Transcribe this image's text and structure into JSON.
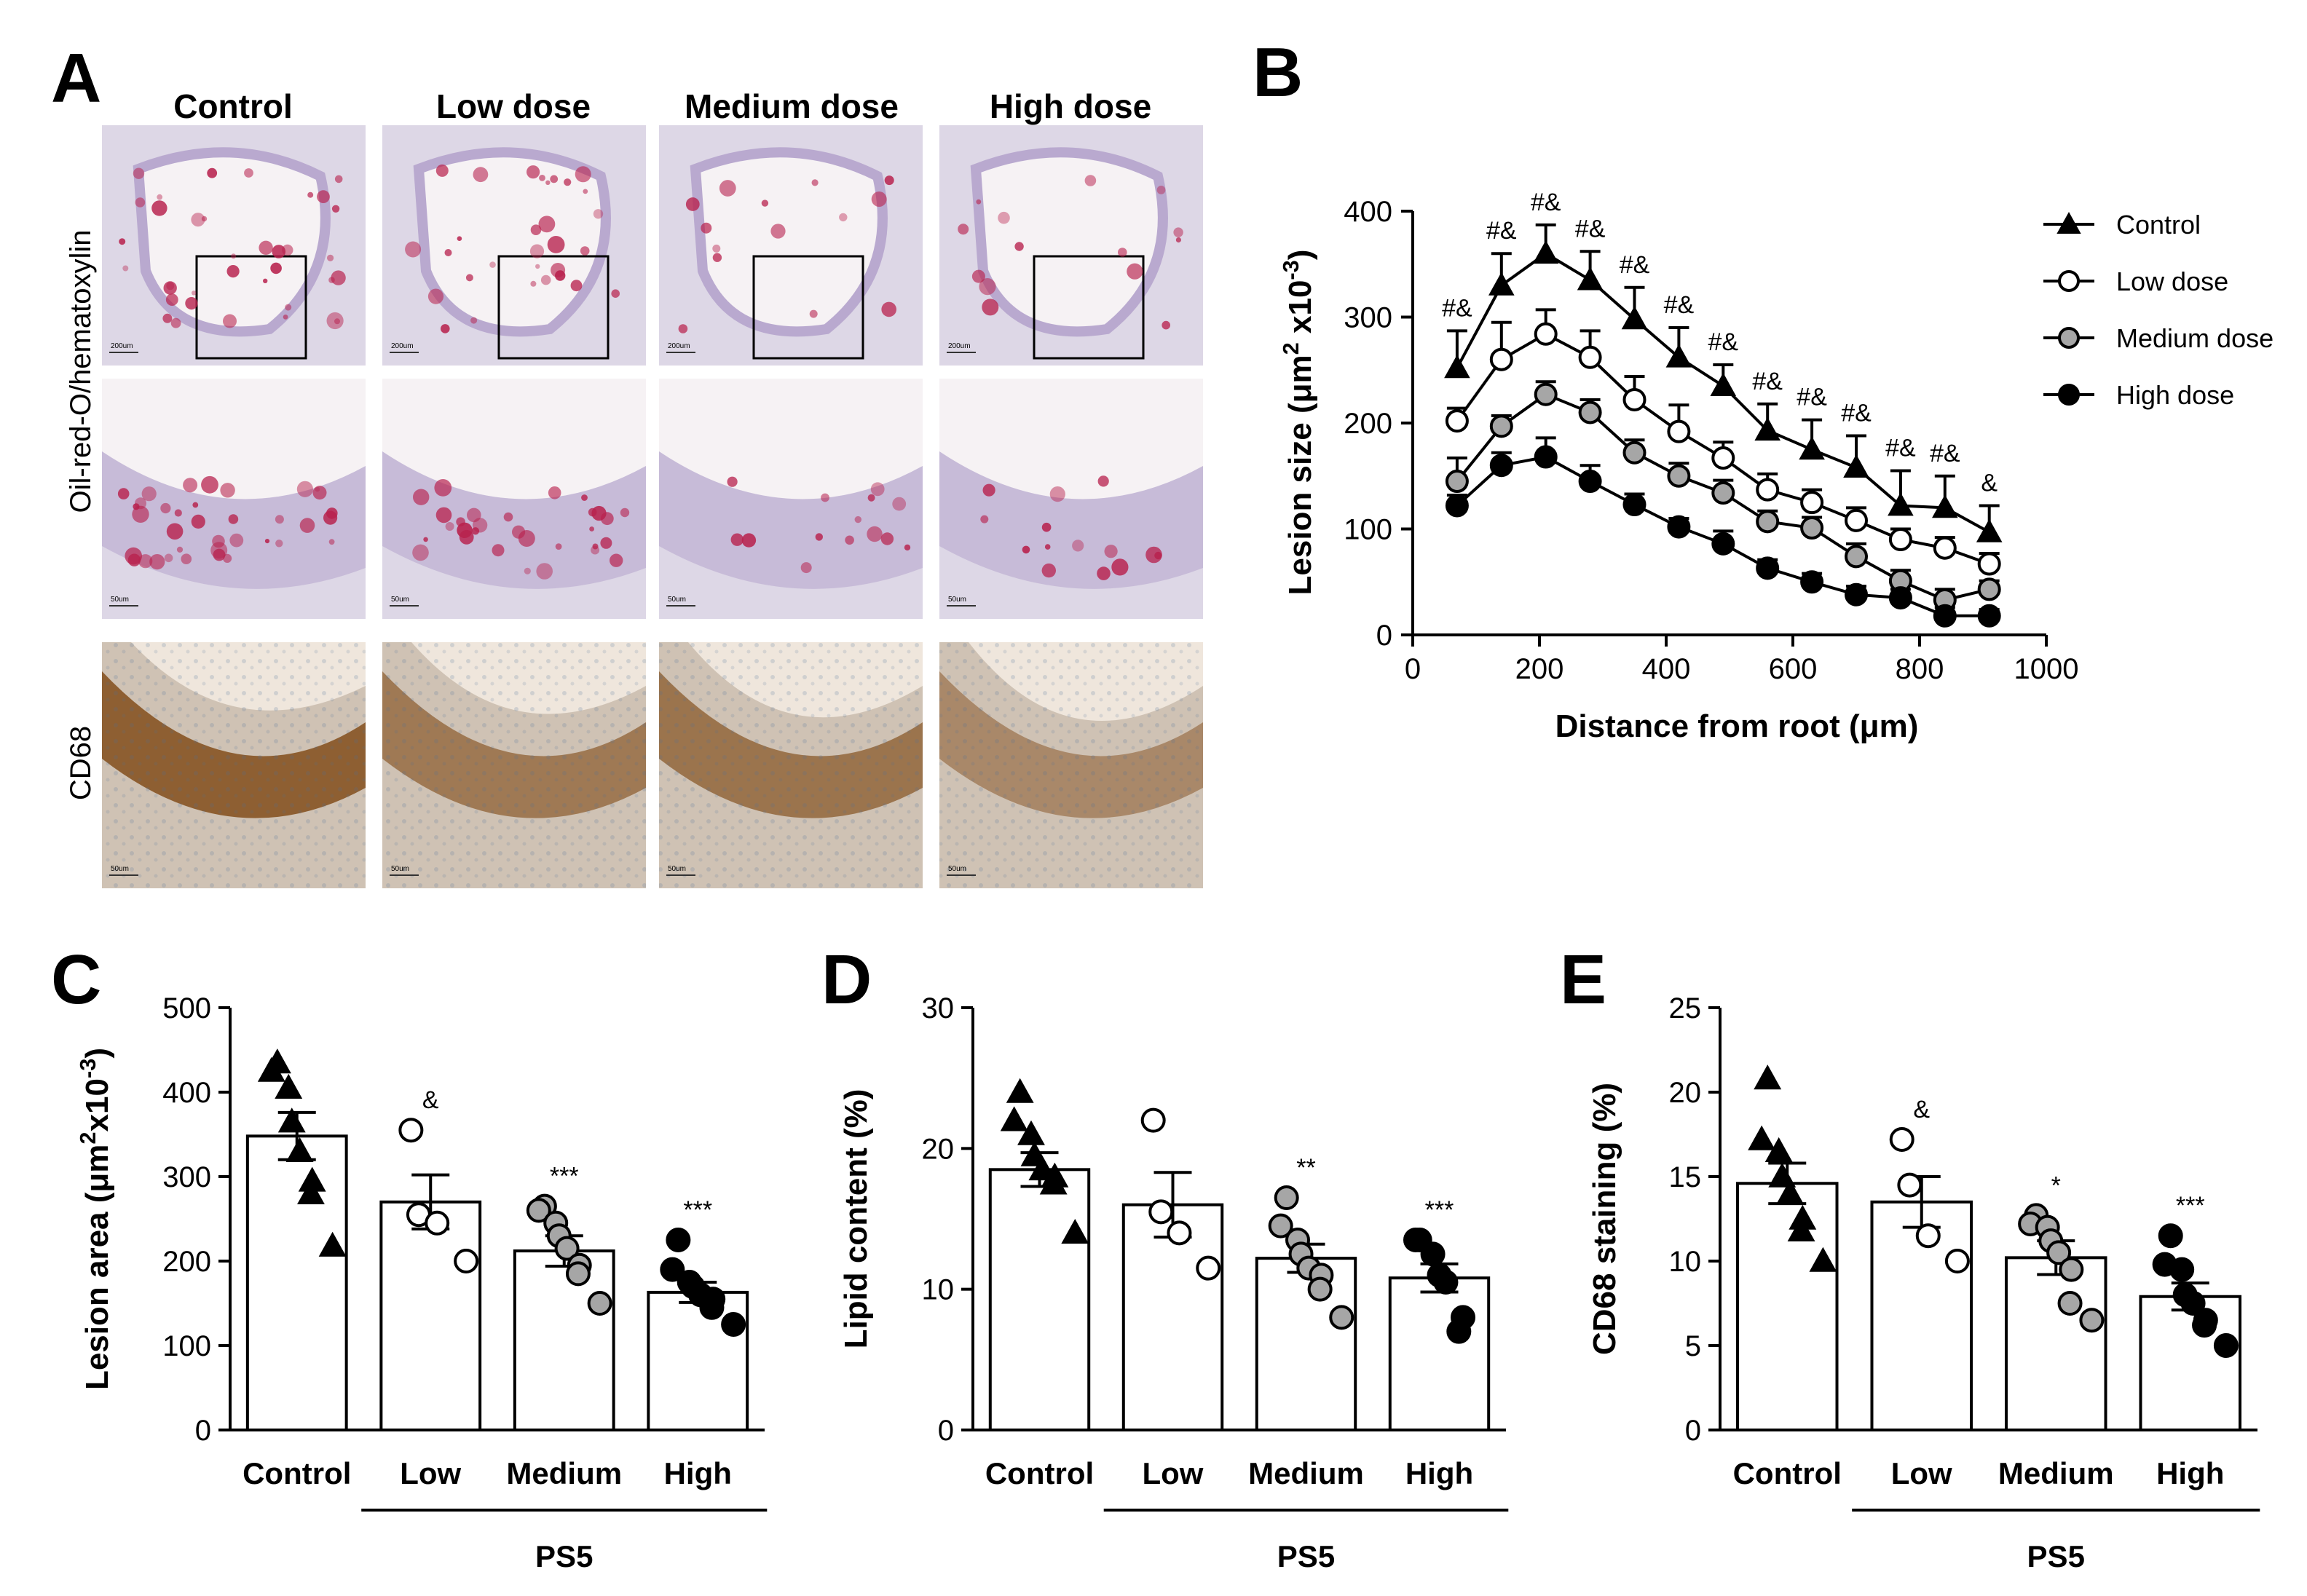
{
  "panel_letters": [
    "A",
    "B",
    "C",
    "D",
    "E"
  ],
  "panel_a": {
    "columns": [
      "Control",
      "Low dose",
      "Medium dose",
      "High dose"
    ],
    "row_labels": [
      "Oil-red-O/hematoxylin",
      "CD68"
    ],
    "scale_bars": [
      "200um",
      "50um",
      "50um"
    ],
    "colors": {
      "oro_bg": "#ddd7e6",
      "oro_lumen": "#f6f2f4",
      "tissue": "#b9a9cf",
      "lipid": "#b8224e",
      "cd68_bg": "#cfc2b4",
      "cd68_lumen": "#efe6dc",
      "cd68_stain": "#8a5a2b",
      "nuclei": "#4a6f99"
    },
    "lipid_intensity": [
      0.9,
      0.75,
      0.35,
      0.35
    ],
    "cd68_intensity": [
      0.95,
      0.7,
      0.75,
      0.55
    ]
  },
  "chart_data": [
    {
      "panel": "B",
      "type": "line",
      "xlabel": "Distance from root (μm)",
      "ylabel_parts": [
        "Lesion size (μm",
        "2",
        " x10",
        "-3",
        ")"
      ],
      "xlim": [
        0,
        1000
      ],
      "ylim": [
        0,
        400
      ],
      "xticks": [
        0,
        200,
        400,
        600,
        800,
        1000
      ],
      "yticks": [
        0,
        100,
        200,
        300,
        400
      ],
      "x": [
        70,
        140,
        210,
        280,
        350,
        420,
        490,
        560,
        630,
        700,
        770,
        840,
        910
      ],
      "series": [
        {
          "name": "Control",
          "marker": "triangle",
          "fill": "#000000",
          "values": [
            252,
            330,
            360,
            335,
            298,
            262,
            235,
            193,
            175,
            158,
            122,
            120,
            97
          ],
          "errors": [
            35,
            30,
            27,
            27,
            30,
            28,
            20,
            25,
            28,
            30,
            33,
            30,
            25
          ]
        },
        {
          "name": "Low dose",
          "marker": "circle",
          "fill": "#ffffff",
          "values": [
            202,
            260,
            284,
            262,
            222,
            192,
            167,
            137,
            125,
            108,
            90,
            82,
            67
          ],
          "errors": [
            12,
            35,
            23,
            25,
            22,
            25,
            15,
            15,
            12,
            12,
            10,
            10,
            10
          ]
        },
        {
          "name": "Medium dose",
          "marker": "circle",
          "fill": "#a6a6a6",
          "values": [
            145,
            197,
            227,
            210,
            172,
            150,
            134,
            107,
            101,
            74,
            51,
            33,
            43
          ],
          "errors": [
            22,
            10,
            12,
            12,
            12,
            12,
            12,
            10,
            10,
            12,
            10,
            10,
            8
          ]
        },
        {
          "name": "High dose",
          "marker": "circle",
          "fill": "#000000",
          "values": [
            122,
            160,
            168,
            145,
            123,
            102,
            86,
            63,
            50,
            38,
            35,
            18,
            18
          ],
          "errors": [
            10,
            12,
            18,
            15,
            10,
            8,
            12,
            8,
            8,
            8,
            8,
            8,
            6
          ]
        }
      ],
      "annotations": [
        "#&",
        "#&",
        "#&",
        "#&",
        "#&",
        "#&",
        "#&",
        "#&",
        "#&",
        "#&",
        "#&",
        "#&",
        "&"
      ],
      "legend_position": "top-right",
      "grid": false
    },
    {
      "panel": "C",
      "type": "bar",
      "ylabel_parts": [
        "Lesion area (μm",
        "2",
        "x10",
        "-3",
        ")"
      ],
      "ylim": [
        0,
        500
      ],
      "yticks": [
        0,
        100,
        200,
        300,
        400,
        500
      ],
      "categories": [
        "Control",
        "Low",
        "Medium",
        "High"
      ],
      "group_label": "PS5",
      "values": [
        348,
        270,
        212,
        163
      ],
      "errors": [
        28,
        32,
        18,
        12
      ],
      "significance": [
        "",
        "&",
        "***",
        "***"
      ],
      "points": [
        [
          435,
          425,
          405,
          365,
          330,
          295,
          280,
          218
        ],
        [
          355,
          255,
          245,
          200
        ],
        [
          265,
          260,
          245,
          230,
          215,
          195,
          185,
          150
        ],
        [
          225,
          190,
          175,
          170,
          160,
          155,
          145,
          125
        ]
      ],
      "marker_styles": [
        {
          "marker": "triangle",
          "fill": "#000000"
        },
        {
          "marker": "circle",
          "fill": "#ffffff"
        },
        {
          "marker": "circle",
          "fill": "#a6a6a6"
        },
        {
          "marker": "circle",
          "fill": "#000000"
        }
      ]
    },
    {
      "panel": "D",
      "type": "bar",
      "ylabel_parts": [
        "Lipid content (%)"
      ],
      "ylim": [
        0,
        30
      ],
      "yticks": [
        0,
        10,
        20,
        30
      ],
      "categories": [
        "Control",
        "Low",
        "Medium",
        "High"
      ],
      "group_label": "PS5",
      "values": [
        18.5,
        16,
        12.2,
        10.8
      ],
      "errors": [
        1.2,
        2.3,
        1.0,
        1.0
      ],
      "significance": [
        "",
        "",
        "**",
        "***"
      ],
      "points": [
        [
          24,
          22,
          21,
          19.5,
          18.5,
          18,
          17.5,
          14
        ],
        [
          22,
          15.5,
          14,
          11.5
        ],
        [
          16.5,
          14.5,
          13.5,
          12.5,
          11.5,
          11,
          10,
          8
        ],
        [
          13.5,
          13.5,
          12.5,
          11,
          10.5,
          8,
          7
        ]
      ],
      "marker_styles": [
        {
          "marker": "triangle",
          "fill": "#000000"
        },
        {
          "marker": "circle",
          "fill": "#ffffff"
        },
        {
          "marker": "circle",
          "fill": "#a6a6a6"
        },
        {
          "marker": "circle",
          "fill": "#000000"
        }
      ]
    },
    {
      "panel": "E",
      "type": "bar",
      "ylabel_parts": [
        "CD68 staining (%)"
      ],
      "ylim": [
        0,
        25
      ],
      "yticks": [
        0,
        5,
        10,
        15,
        20,
        25
      ],
      "categories": [
        "Control",
        "Low",
        "Medium",
        "High"
      ],
      "group_label": "PS5",
      "values": [
        14.6,
        13.5,
        10.2,
        7.9
      ],
      "errors": [
        1.2,
        1.5,
        1.0,
        0.8
      ],
      "significance": [
        "",
        "&",
        "*",
        "***"
      ],
      "points": [
        [
          20.8,
          17.2,
          16.5,
          15,
          14,
          12.5,
          11.8,
          10
        ],
        [
          17.2,
          14.5,
          11.5,
          10
        ],
        [
          12.7,
          12.2,
          12,
          11.2,
          10.5,
          9.5,
          7.5,
          6.5
        ],
        [
          11.5,
          9.8,
          9.5,
          8,
          7.5,
          6.5,
          6.2,
          5
        ]
      ],
      "marker_styles": [
        {
          "marker": "triangle",
          "fill": "#000000"
        },
        {
          "marker": "circle",
          "fill": "#ffffff"
        },
        {
          "marker": "circle",
          "fill": "#a6a6a6"
        },
        {
          "marker": "circle",
          "fill": "#000000"
        }
      ]
    }
  ]
}
